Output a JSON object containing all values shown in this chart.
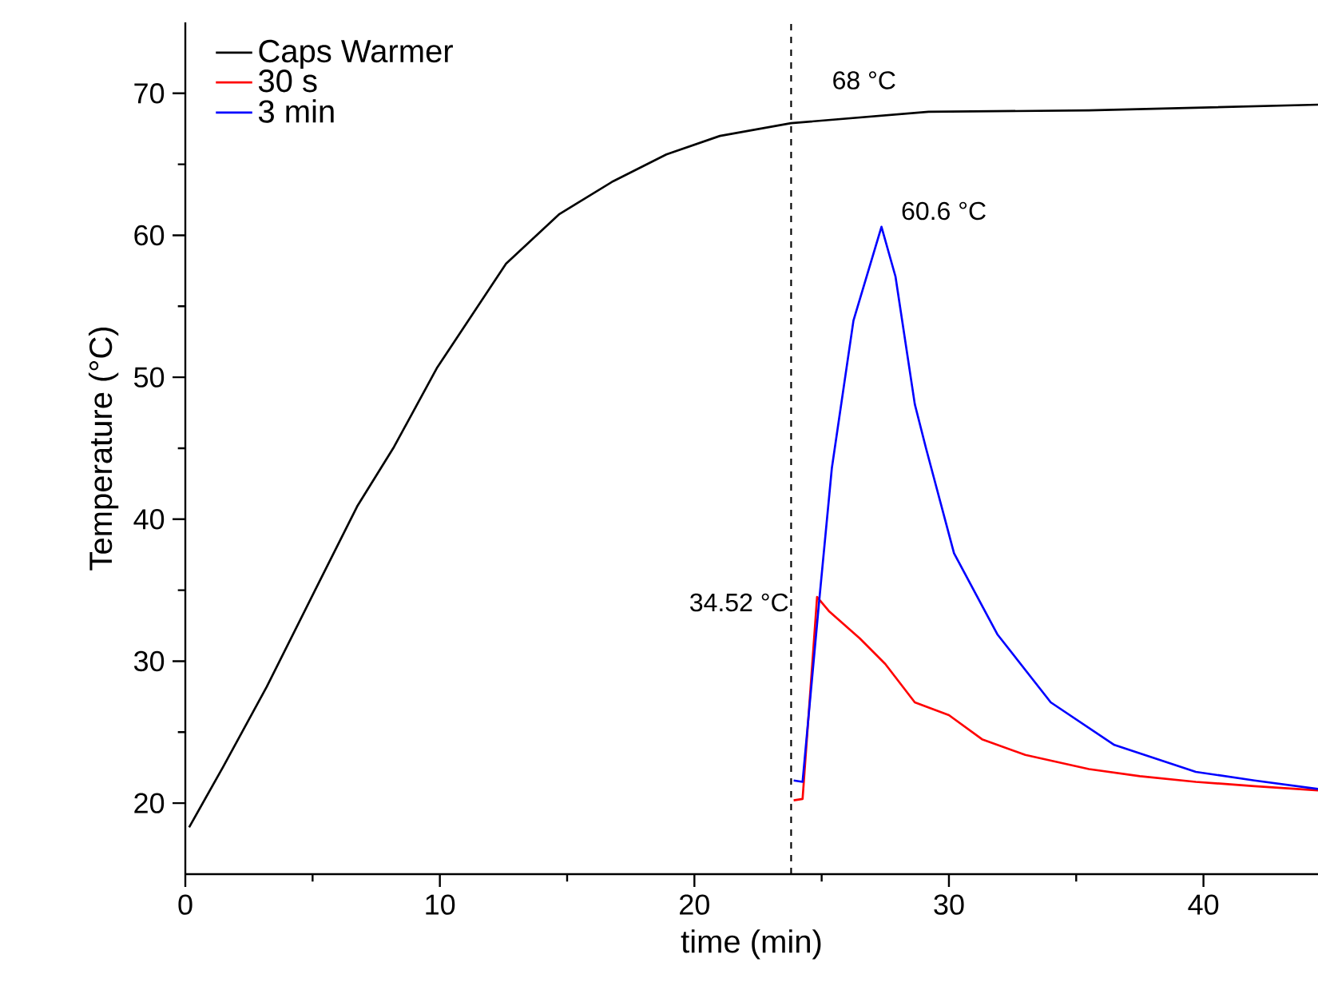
{
  "chart_data": {
    "type": "line",
    "xlabel": "time (min)",
    "ylabel": "Temperature (°C)",
    "xlim": [
      0,
      44.5
    ],
    "ylim": [
      15,
      75
    ],
    "xticks": [
      0,
      10,
      20,
      30,
      40
    ],
    "yticks": [
      20,
      30,
      40,
      50,
      60,
      70
    ],
    "legend": "top left",
    "grid": false,
    "series": [
      {
        "name": "Caps Warmer",
        "color": "#000000",
        "x": [
          0.15,
          1.5,
          3.2,
          5.07,
          6.75,
          8.2,
          9.9,
          12.6,
          14.7,
          16.8,
          18.9,
          21,
          23.8,
          29.2,
          35.5,
          44.5
        ],
        "values": [
          18.3,
          22.6,
          28.2,
          34.9,
          40.9,
          45.1,
          50.7,
          58,
          61.5,
          63.8,
          65.7,
          67,
          67.9,
          68.7,
          68.8,
          69.2
        ]
      },
      {
        "name": "30 s",
        "color": "#ff0000",
        "x": [
          23.9,
          24.25,
          24.82,
          25.3,
          26.5,
          27.5,
          28.66,
          30,
          31.3,
          33,
          35.5,
          37.5,
          39.7,
          42,
          44.5
        ],
        "values": [
          20.2,
          20.3,
          34.52,
          33.5,
          31.6,
          29.8,
          27.1,
          26.2,
          24.5,
          23.4,
          22.4,
          21.9,
          21.5,
          21.2,
          20.9
        ]
      },
      {
        "name": "3 min",
        "color": "#0000ff",
        "x": [
          23.9,
          24.25,
          24.9,
          25.4,
          26.25,
          27.35,
          27.9,
          28.66,
          29.1,
          30.2,
          31.9,
          34.0,
          36.5,
          39.7,
          42,
          44.5
        ],
        "values": [
          21.6,
          21.5,
          34.2,
          43.6,
          54,
          60.6,
          57.1,
          48.1,
          45,
          37.6,
          31.9,
          27.1,
          24.1,
          22.2,
          21.6,
          21.0
        ]
      }
    ],
    "ref_lines": [
      {
        "axis": "x",
        "value": 23.8,
        "color": "#000000",
        "line_style": "dashed"
      }
    ],
    "annotations": [
      {
        "text": "68 °C",
        "x": 23.8,
        "y": 68
      },
      {
        "text": "60.6 °C",
        "x": 27.35,
        "y": 60.6
      },
      {
        "text": "34.52 °C",
        "x": 24.82,
        "y": 34.52
      }
    ]
  }
}
